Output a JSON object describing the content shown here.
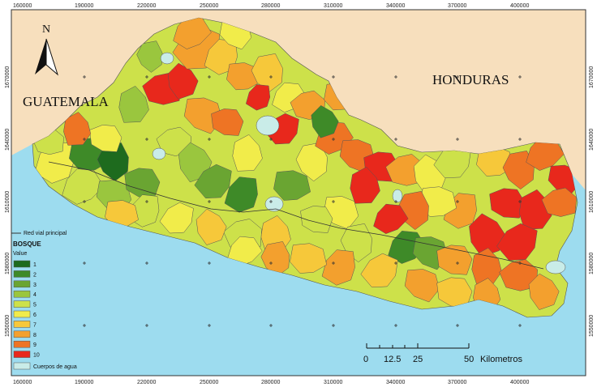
{
  "map": {
    "north_label": "N",
    "countries": {
      "guatemala": "GUATEMALA",
      "honduras": "HONDURAS"
    },
    "x_ticks": [
      "160000",
      "190000",
      "220000",
      "250000",
      "280000",
      "310000",
      "340000",
      "370000",
      "400000"
    ],
    "y_ticks": [
      "1670000",
      "1640000",
      "1610000",
      "1580000",
      "1550000"
    ],
    "colors": {
      "sea": "#9ddcef",
      "land_outside": "#f7dfbd",
      "water_body": "#c9ece8",
      "road": "#333333"
    }
  },
  "legend": {
    "road_label": "Red vial principal",
    "title": "BOSQUE",
    "subtitle": "Value",
    "classes": [
      {
        "label": "1",
        "color": "#1e6b1e"
      },
      {
        "label": "2",
        "color": "#3e8a28"
      },
      {
        "label": "3",
        "color": "#6aa532"
      },
      {
        "label": "4",
        "color": "#9ac63e"
      },
      {
        "label": "5",
        "color": "#cde14a"
      },
      {
        "label": "6",
        "color": "#f1ec4a"
      },
      {
        "label": "7",
        "color": "#f6c83a"
      },
      {
        "label": "8",
        "color": "#f3a02e"
      },
      {
        "label": "9",
        "color": "#ee7424"
      },
      {
        "label": "10",
        "color": "#e8281c"
      }
    ],
    "water_label": "Cuerpos de agua"
  },
  "scale_bar": {
    "labels": [
      "0",
      "12.5",
      "25",
      "50"
    ],
    "unit": "Kilometros"
  }
}
